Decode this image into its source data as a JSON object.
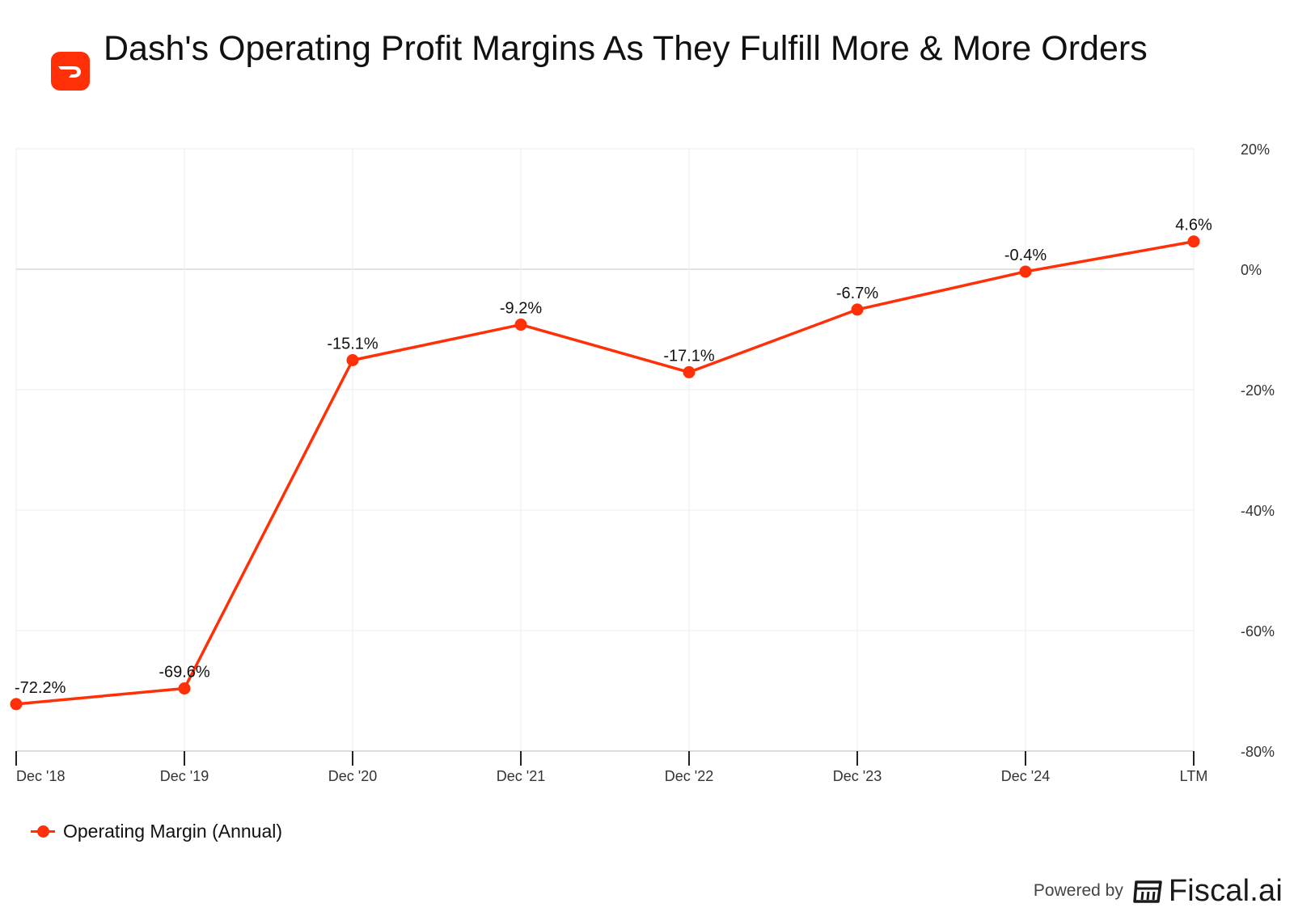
{
  "header": {
    "title": "Dash's Operating Profit Margins As They Fulfill More & More Orders",
    "logo_icon": "doordash-logo-icon"
  },
  "colors": {
    "accent": "#ff3008",
    "grid": "#eeeeee",
    "zero_line": "#d9d9d9"
  },
  "chart_data": {
    "type": "line",
    "title": "Dash's Operating Profit Margins As They Fulfill More & More Orders",
    "categories": [
      "Dec '18",
      "Dec '19",
      "Dec '20",
      "Dec '21",
      "Dec '22",
      "Dec '23",
      "Dec '24",
      "LTM"
    ],
    "series": [
      {
        "name": "Operating Margin (Annual)",
        "values": [
          -72.2,
          -69.6,
          -15.1,
          -9.2,
          -17.1,
          -6.7,
          -0.4,
          4.6
        ],
        "labels": [
          "-72.2%",
          "-69.6%",
          "-15.1%",
          "-9.2%",
          "-17.1%",
          "-6.7%",
          "-0.4%",
          "4.6%"
        ],
        "color": "#ff3008"
      }
    ],
    "y_ticks": [
      20,
      0,
      -20,
      -40,
      -60,
      -80
    ],
    "y_tick_labels": [
      "20%",
      "0%",
      "-20%",
      "-40%",
      "-60%",
      "-80%"
    ],
    "ylim": [
      -80,
      20
    ],
    "y_axis_side": "right",
    "grid": true,
    "legend_position": "bottom-left"
  },
  "legend": {
    "label": "Operating Margin (Annual)"
  },
  "footer": {
    "powered_by": "Powered by",
    "brand": "Fiscal.ai",
    "brand_icon": "fiscal-ai-logo-icon"
  }
}
